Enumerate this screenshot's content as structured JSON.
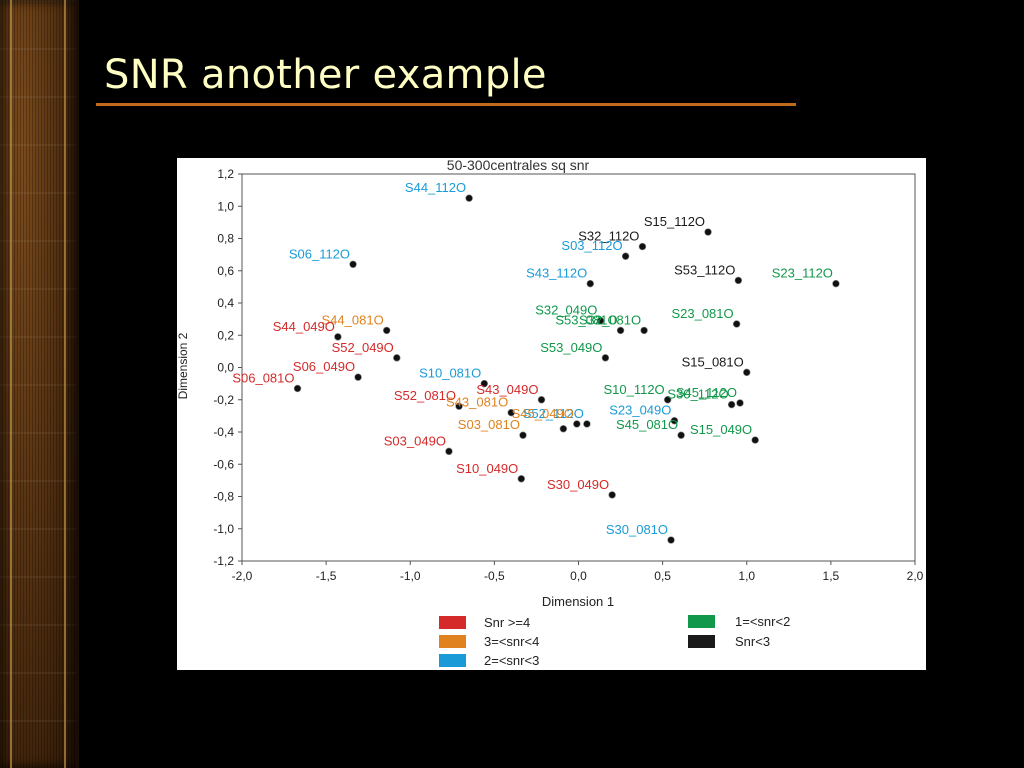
{
  "slide": {
    "title": "SNR another example"
  },
  "colors": {
    "background": "#000000",
    "title_text": "#ffffc4",
    "title_rule": "#c06a1d",
    "chart_bg": "#ffffff"
  },
  "chart_data": {
    "type": "scatter",
    "title": "50-300centrales sq snr",
    "xlabel": "Dimension 1",
    "ylabel": "Dimension 2",
    "xlim": [
      -2.0,
      2.0
    ],
    "ylim": [
      -1.2,
      1.2
    ],
    "x_ticks": [
      -2.0,
      -1.5,
      -1.0,
      -0.5,
      0.0,
      0.5,
      1.0,
      1.5,
      2.0
    ],
    "y_ticks": [
      1.2,
      1.0,
      0.8,
      0.6,
      0.4,
      0.2,
      0.0,
      -0.2,
      -0.4,
      -0.6,
      -0.8,
      -1.0,
      -1.2
    ],
    "x_tick_labels": [
      "-2,0",
      "-1,5",
      "-1,0",
      "-0,5",
      "0,0",
      "0,5",
      "1,0",
      "1,5",
      "2,0"
    ],
    "y_tick_labels": [
      "1,2",
      "1,0",
      "0,8",
      "0,6",
      "0,4",
      "0,2",
      "0,0",
      "-0,2",
      "-0,4",
      "-0,6",
      "-0,8",
      "-1,0",
      "-1,2"
    ],
    "grid": false,
    "legend_position": "bottom",
    "categories": [
      {
        "key": "g4",
        "name": "Snr >=4",
        "color": "#d42a2a"
      },
      {
        "key": "g3",
        "name": "3=<snr<4",
        "color": "#e0821e"
      },
      {
        "key": "g2",
        "name": "2=<snr<3",
        "color": "#1a9bd7"
      },
      {
        "key": "g1",
        "name": "1=<snr<2",
        "color": "#11984a"
      },
      {
        "key": "g0",
        "name": "Snr<3",
        "color": "#1a1a1a"
      }
    ],
    "points": [
      {
        "label": "S44_112O",
        "x": -0.65,
        "y": 1.05,
        "cat": "g2"
      },
      {
        "label": "S15_112O",
        "x": 0.77,
        "y": 0.84,
        "cat": "g0"
      },
      {
        "label": "S32_112O",
        "x": 0.38,
        "y": 0.75,
        "cat": "g0"
      },
      {
        "label": "S03_112O",
        "x": 0.28,
        "y": 0.69,
        "cat": "g2"
      },
      {
        "label": "S06_112O",
        "x": -1.34,
        "y": 0.64,
        "cat": "g2"
      },
      {
        "label": "S43_112O",
        "x": 0.07,
        "y": 0.52,
        "cat": "g2"
      },
      {
        "label": "S53_112O",
        "x": 0.95,
        "y": 0.54,
        "cat": "g0"
      },
      {
        "label": "S23_112O",
        "x": 1.53,
        "y": 0.52,
        "cat": "g1"
      },
      {
        "label": "S44_081O",
        "x": -1.14,
        "y": 0.23,
        "cat": "g3"
      },
      {
        "label": "S44_049O",
        "x": -1.43,
        "y": 0.19,
        "cat": "g4"
      },
      {
        "label": "S32_049O",
        "x": 0.13,
        "y": 0.29,
        "cat": "g1"
      },
      {
        "label": "S53_081O",
        "x": 0.25,
        "y": 0.23,
        "cat": "g1"
      },
      {
        "label": "S32_081O",
        "x": 0.39,
        "y": 0.23,
        "cat": "g1"
      },
      {
        "label": "S23_081O",
        "x": 0.94,
        "y": 0.27,
        "cat": "g1"
      },
      {
        "label": "S52_049O",
        "x": -1.08,
        "y": 0.06,
        "cat": "g4"
      },
      {
        "label": "S53_049O",
        "x": 0.16,
        "y": 0.06,
        "cat": "g1"
      },
      {
        "label": "S15_081O",
        "x": 1.0,
        "y": -0.03,
        "cat": "g0"
      },
      {
        "label": "S06_049O",
        "x": -1.31,
        "y": -0.06,
        "cat": "g4"
      },
      {
        "label": "S06_081O",
        "x": -1.67,
        "y": -0.13,
        "cat": "g4"
      },
      {
        "label": "S10_081O",
        "x": -0.56,
        "y": -0.1,
        "cat": "g2"
      },
      {
        "label": "S43_049O",
        "x": -0.22,
        "y": -0.2,
        "cat": "g4"
      },
      {
        "label": "S52_081O",
        "x": -0.71,
        "y": -0.24,
        "cat": "g4"
      },
      {
        "label": "S43_081O",
        "x": -0.4,
        "y": -0.28,
        "cat": "g3"
      },
      {
        "label": "S10_112O",
        "x": 0.53,
        "y": -0.2,
        "cat": "g1"
      },
      {
        "label": "S30_112O",
        "x": 0.91,
        "y": -0.23,
        "cat": "g1"
      },
      {
        "label": "S45_112O",
        "x": 0.96,
        "y": -0.22,
        "cat": "g1"
      },
      {
        "label": "S52_112O",
        "x": 0.05,
        "y": -0.35,
        "cat": "g2"
      },
      {
        "label": "S45_049O",
        "x": -0.01,
        "y": -0.35,
        "cat": "g3"
      },
      {
        "label": "S23_049O",
        "x": 0.57,
        "y": -0.33,
        "cat": "g2"
      },
      {
        "label": "S03_081O",
        "x": -0.33,
        "y": -0.42,
        "cat": "g3"
      },
      {
        "label": "S45_081O",
        "x": 0.61,
        "y": -0.42,
        "cat": "g1"
      },
      {
        "label": "S15_049O",
        "x": 1.05,
        "y": -0.45,
        "cat": "g1"
      },
      {
        "label": "S30_081O_mid",
        "x": -0.09,
        "y": -0.38,
        "cat": "g2",
        "text": ""
      },
      {
        "label": "S03_049O",
        "x": -0.77,
        "y": -0.52,
        "cat": "g4"
      },
      {
        "label": "S10_049O",
        "x": -0.34,
        "y": -0.69,
        "cat": "g4"
      },
      {
        "label": "S30_049O",
        "x": 0.2,
        "y": -0.79,
        "cat": "g4"
      },
      {
        "label": "S30_081O",
        "x": 0.55,
        "y": -1.07,
        "cat": "g2"
      }
    ],
    "legend_rows": [
      {
        "key": "g4",
        "text": "Snr >=4"
      },
      {
        "key": "g3",
        "text": "3=<snr<4"
      },
      {
        "key": "g2",
        "text": "2=<snr<3"
      },
      {
        "key": "g1",
        "text": "1=<snr<2"
      },
      {
        "key": "g0",
        "text": "Snr<3"
      }
    ]
  }
}
